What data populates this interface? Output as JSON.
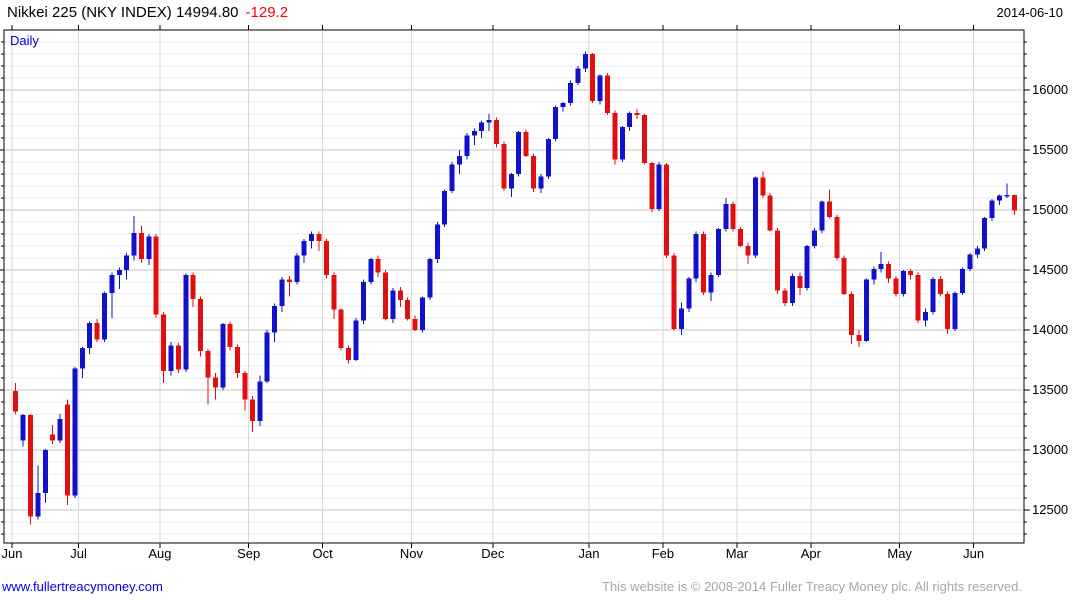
{
  "header": {
    "title": "Nikkei 225 (NKY INDEX) 14994.80",
    "change": "-129.2",
    "date": "2014-06-10"
  },
  "chart": {
    "interval_label": "Daily"
  },
  "footer": {
    "site": "www.fullertreacymoney.com",
    "copyright": "This website is © 2008-2014 Fuller Treacy Money plc. All rights reserved."
  },
  "chart_data": {
    "type": "candlestick",
    "title": "Nikkei 225 (NKY INDEX)",
    "interval": "Daily",
    "last_price": 14994.8,
    "change": -129.2,
    "date": "2014-06-10",
    "ylim": [
      12225,
      16500
    ],
    "y_ticks": [
      12500,
      13000,
      13500,
      14000,
      14500,
      15000,
      15500,
      16000
    ],
    "y_minor_step": 100,
    "grid": "on",
    "up_color": "#1111cc",
    "down_color": "#e01010",
    "major_grid_color": "#c3c3c3",
    "minor_grid_color": "#ebebeb",
    "month_grid_color": "#d9d9d9",
    "months": [
      {
        "label": "Jun",
        "candles": [
          [
            13490,
            13560,
            13300,
            13320
          ],
          [
            13080,
            13300,
            13030,
            13290
          ],
          [
            13290,
            13300,
            12380,
            12445
          ],
          [
            12445,
            12870,
            12420,
            12640
          ],
          [
            12640,
            13010,
            12560,
            13000
          ],
          [
            13130,
            13210,
            13050,
            13080
          ],
          [
            13080,
            13300,
            13060,
            13260
          ],
          [
            13380,
            13420,
            12540,
            12620
          ],
          [
            12620,
            13690,
            12600,
            13680
          ]
        ]
      },
      {
        "label": "Jul",
        "candles": [
          [
            13680,
            13860,
            13600,
            13850
          ],
          [
            13850,
            14070,
            13800,
            14060
          ],
          [
            14060,
            14090,
            13900,
            13920
          ],
          [
            13920,
            14320,
            13900,
            14310
          ],
          [
            14310,
            14480,
            14100,
            14460
          ],
          [
            14460,
            14520,
            14340,
            14500
          ],
          [
            14500,
            14640,
            14420,
            14620
          ],
          [
            14620,
            14950,
            14580,
            14810
          ],
          [
            14810,
            14870,
            14560,
            14590
          ],
          [
            14590,
            14800,
            14540,
            14780
          ],
          [
            14780,
            14800,
            14100,
            14130
          ]
        ]
      },
      {
        "label": "Aug",
        "candles": [
          [
            14130,
            14150,
            13560,
            13660
          ],
          [
            13660,
            13900,
            13620,
            13870
          ],
          [
            13870,
            13890,
            13640,
            13670
          ],
          [
            13670,
            14470,
            13650,
            14460
          ],
          [
            14460,
            14480,
            14190,
            14260
          ],
          [
            14260,
            14280,
            13780,
            13825
          ],
          [
            13825,
            13840,
            13380,
            13605
          ],
          [
            13605,
            13640,
            13420,
            13520
          ],
          [
            13520,
            14060,
            13500,
            14050
          ],
          [
            14050,
            14070,
            13830,
            13860
          ],
          [
            13860,
            13880,
            13600,
            13640
          ],
          [
            13640,
            13660,
            13330,
            13420
          ]
        ]
      },
      {
        "label": "Sep",
        "candles": [
          [
            13420,
            13450,
            13150,
            13240
          ],
          [
            13240,
            13620,
            13200,
            13570
          ],
          [
            13570,
            14000,
            13560,
            13980
          ],
          [
            13980,
            14220,
            13900,
            14200
          ],
          [
            14200,
            14440,
            14150,
            14420
          ],
          [
            14420,
            14450,
            14280,
            14400
          ],
          [
            14400,
            14640,
            14380,
            14620
          ],
          [
            14620,
            14760,
            14560,
            14740
          ],
          [
            14740,
            14820,
            14680,
            14800
          ],
          [
            14800,
            14820,
            14660,
            14740
          ]
        ]
      },
      {
        "label": "Oct",
        "candles": [
          [
            14740,
            14760,
            14430,
            14460
          ],
          [
            14460,
            14480,
            14090,
            14170
          ],
          [
            14170,
            14180,
            13830,
            13850
          ],
          [
            13850,
            13870,
            13720,
            13750
          ],
          [
            13750,
            14100,
            13740,
            14080
          ],
          [
            14080,
            14420,
            14050,
            14400
          ],
          [
            14400,
            14600,
            14380,
            14590
          ],
          [
            14590,
            14620,
            14440,
            14480
          ],
          [
            14480,
            14500,
            14080,
            14090
          ],
          [
            14090,
            14350,
            14060,
            14330
          ],
          [
            14330,
            14360,
            14190,
            14250
          ],
          [
            14250,
            14270,
            14080,
            14090
          ]
        ]
      },
      {
        "label": "Nov",
        "candles": [
          [
            14090,
            14120,
            13990,
            14000
          ],
          [
            14000,
            14280,
            13980,
            14270
          ],
          [
            14270,
            14600,
            14250,
            14590
          ],
          [
            14590,
            14900,
            14560,
            14880
          ],
          [
            14880,
            15170,
            14860,
            15160
          ],
          [
            15160,
            15400,
            15140,
            15380
          ],
          [
            15380,
            15500,
            15300,
            15450
          ],
          [
            15450,
            15640,
            15420,
            15620
          ],
          [
            15620,
            15680,
            15540,
            15660
          ],
          [
            15660,
            15740,
            15600,
            15730
          ],
          [
            15730,
            15800,
            15660,
            15750
          ]
        ]
      },
      {
        "label": "Dec",
        "candles": [
          [
            15750,
            15770,
            15520,
            15550
          ],
          [
            15550,
            15570,
            15160,
            15180
          ],
          [
            15180,
            15310,
            15110,
            15300
          ],
          [
            15300,
            15660,
            15280,
            15650
          ],
          [
            15650,
            15670,
            15440,
            15450
          ],
          [
            15450,
            15470,
            15150,
            15180
          ],
          [
            15180,
            15300,
            15140,
            15280
          ],
          [
            15280,
            15600,
            15260,
            15590
          ],
          [
            15590,
            15870,
            15570,
            15860
          ],
          [
            15860,
            15900,
            15820,
            15890
          ],
          [
            15890,
            16080,
            15870,
            16060
          ],
          [
            16060,
            16200,
            16040,
            16180
          ],
          [
            16180,
            16320,
            16150,
            16300
          ]
        ]
      },
      {
        "label": "Jan",
        "candles": [
          [
            16300,
            16310,
            15890,
            15910
          ],
          [
            15910,
            16130,
            15880,
            16120
          ],
          [
            16120,
            16140,
            15790,
            15810
          ],
          [
            15810,
            15830,
            15380,
            15420
          ],
          [
            15420,
            15700,
            15400,
            15690
          ],
          [
            15690,
            15820,
            15660,
            15810
          ],
          [
            15810,
            15840,
            15760,
            15790
          ],
          [
            15790,
            15800,
            15380,
            15390
          ],
          [
            15390,
            15400,
            14980,
            15010
          ],
          [
            15010,
            15400,
            14990,
            15380
          ]
        ]
      },
      {
        "label": "Feb",
        "candles": [
          [
            15380,
            15390,
            14600,
            14620
          ],
          [
            14620,
            14640,
            13995,
            14010
          ],
          [
            14010,
            14230,
            13960,
            14180
          ],
          [
            14180,
            14440,
            14150,
            14430
          ],
          [
            14430,
            14820,
            14400,
            14800
          ],
          [
            14800,
            14820,
            14290,
            14313
          ],
          [
            14313,
            14480,
            14240,
            14460
          ],
          [
            14460,
            14850,
            14440,
            14840
          ],
          [
            14840,
            15100,
            14820,
            15050
          ],
          [
            15050,
            15070,
            14820,
            14840
          ]
        ]
      },
      {
        "label": "Mar",
        "candles": [
          [
            14840,
            14860,
            14690,
            14700
          ],
          [
            14700,
            14730,
            14550,
            14620
          ],
          [
            14620,
            15280,
            14600,
            15270
          ],
          [
            15270,
            15320,
            15100,
            15120
          ],
          [
            15120,
            15140,
            14820,
            14830
          ],
          [
            14830,
            14850,
            14300,
            14330
          ],
          [
            14330,
            14350,
            14200,
            14224
          ],
          [
            14224,
            14470,
            14200,
            14450
          ],
          [
            14450,
            14480,
            14290,
            14350
          ],
          [
            14350,
            14710,
            14330,
            14700
          ]
        ]
      },
      {
        "label": "Apr",
        "candles": [
          [
            14700,
            14850,
            14680,
            14830
          ],
          [
            14830,
            15080,
            14810,
            15070
          ],
          [
            15070,
            15170,
            14930,
            14940
          ],
          [
            14940,
            14960,
            14580,
            14600
          ],
          [
            14600,
            14620,
            14290,
            14300
          ],
          [
            14300,
            14320,
            13885,
            13960
          ],
          [
            13960,
            14000,
            13860,
            13910
          ],
          [
            13910,
            14430,
            13900,
            14420
          ],
          [
            14420,
            14530,
            14380,
            14510
          ],
          [
            14510,
            14650,
            14480,
            14550
          ],
          [
            14550,
            14570,
            14390,
            14430
          ],
          [
            14430,
            14450,
            14280,
            14300
          ]
        ]
      },
      {
        "label": "May",
        "candles": [
          [
            14300,
            14500,
            14280,
            14490
          ],
          [
            14490,
            14510,
            14420,
            14460
          ],
          [
            14460,
            14480,
            14060,
            14080
          ],
          [
            14080,
            14180,
            14030,
            14150
          ],
          [
            14150,
            14440,
            14130,
            14425
          ],
          [
            14425,
            14450,
            14280,
            14300
          ],
          [
            14300,
            14320,
            13965,
            14010
          ],
          [
            14010,
            14320,
            13990,
            14310
          ],
          [
            14310,
            14520,
            14290,
            14510
          ],
          [
            14510,
            14640,
            14490,
            14630
          ]
        ]
      },
      {
        "label": "Jun",
        "candles": [
          [
            14630,
            14700,
            14600,
            14680
          ],
          [
            14680,
            14940,
            14660,
            14935
          ],
          [
            14935,
            15090,
            14910,
            15080
          ],
          [
            15080,
            15130,
            15040,
            15120
          ],
          [
            15120,
            15220,
            15100,
            15124
          ],
          [
            15124,
            15130,
            14960,
            14995
          ]
        ]
      }
    ]
  }
}
